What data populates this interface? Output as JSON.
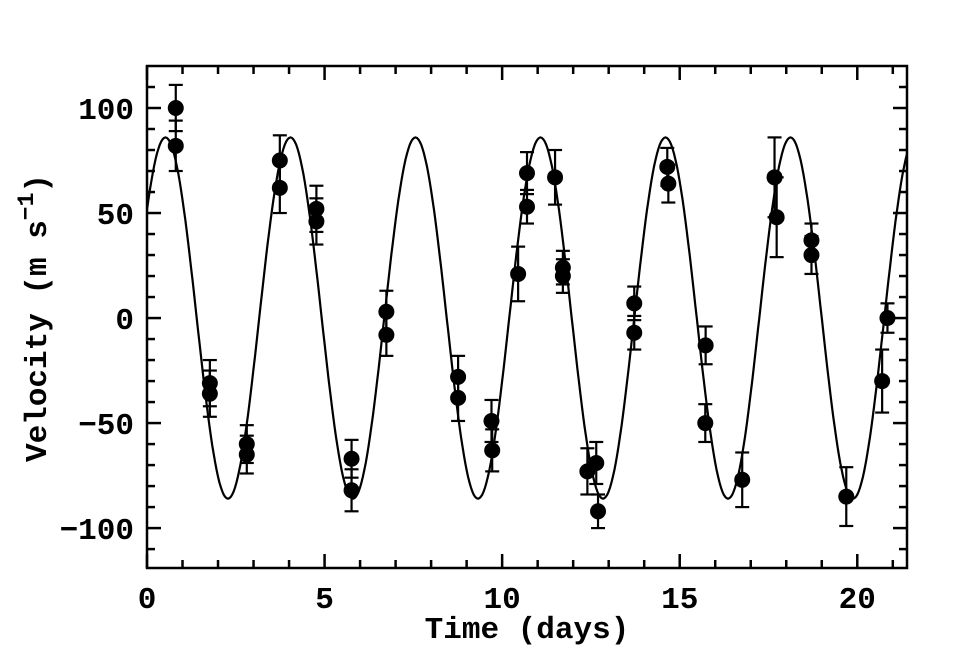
{
  "page": {
    "background_color": "#ffffff",
    "foreground_color": "#000000"
  },
  "chart_data": {
    "type": "scatter",
    "title": "",
    "xlabel": "Time (days)",
    "ylabel": "Velocity (m s-1)",
    "ylabel_parts": {
      "main": "Velocity (m s",
      "sup": "−1",
      "end": ")"
    },
    "xlim": [
      0,
      21.4
    ],
    "ylim": [
      -119,
      120
    ],
    "x_major_ticks": [
      0,
      5,
      10,
      15,
      20
    ],
    "x_minor_step": 1,
    "y_major_ticks": [
      100,
      50,
      0,
      -50,
      -100
    ],
    "y_minor_step": 10,
    "grid": false,
    "legend": "none",
    "marker_color": "#000000",
    "curve_color": "#000000",
    "fit_curve": {
      "model": "cosine",
      "amplitude_m_s": 86,
      "period_days": 3.52,
      "peak_time_days": 0.52,
      "mean_m_s": 0
    },
    "series_name": "radial velocity measurements with error bars",
    "points": [
      {
        "t": 0.81,
        "v": 100,
        "err": 11
      },
      {
        "t": 0.81,
        "v": 82,
        "err": 12
      },
      {
        "t": 1.77,
        "v": -31,
        "err": 11
      },
      {
        "t": 1.77,
        "v": -36,
        "err": 11
      },
      {
        "t": 2.81,
        "v": -60,
        "err": 9
      },
      {
        "t": 2.81,
        "v": -65,
        "err": 9
      },
      {
        "t": 3.74,
        "v": 75,
        "err": 12
      },
      {
        "t": 3.74,
        "v": 62,
        "err": 12
      },
      {
        "t": 4.77,
        "v": 52,
        "err": 11
      },
      {
        "t": 4.77,
        "v": 46,
        "err": 11
      },
      {
        "t": 5.76,
        "v": -67,
        "err": 9
      },
      {
        "t": 5.76,
        "v": -82,
        "err": 10
      },
      {
        "t": 6.74,
        "v": 3,
        "err": 10
      },
      {
        "t": 6.74,
        "v": -8,
        "err": 10
      },
      {
        "t": 8.76,
        "v": -28,
        "err": 10
      },
      {
        "t": 8.76,
        "v": -38,
        "err": 11
      },
      {
        "t": 9.7,
        "v": -49,
        "err": 10
      },
      {
        "t": 9.72,
        "v": -63,
        "err": 10
      },
      {
        "t": 10.45,
        "v": 21,
        "err": 13
      },
      {
        "t": 10.7,
        "v": 69,
        "err": 10
      },
      {
        "t": 10.7,
        "v": 53,
        "err": 8
      },
      {
        "t": 11.49,
        "v": 67,
        "err": 13
      },
      {
        "t": 11.71,
        "v": 24,
        "err": 8
      },
      {
        "t": 11.71,
        "v": 20,
        "err": 8
      },
      {
        "t": 12.4,
        "v": -73,
        "err": 11
      },
      {
        "t": 12.65,
        "v": -69,
        "err": 10
      },
      {
        "t": 12.7,
        "v": -92,
        "err": 8
      },
      {
        "t": 13.72,
        "v": 7,
        "err": 8
      },
      {
        "t": 13.72,
        "v": -7,
        "err": 8
      },
      {
        "t": 14.65,
        "v": 72,
        "err": 9
      },
      {
        "t": 14.68,
        "v": 64,
        "err": 9
      },
      {
        "t": 15.73,
        "v": -13,
        "err": 9
      },
      {
        "t": 15.72,
        "v": -50,
        "err": 9
      },
      {
        "t": 16.76,
        "v": -77,
        "err": 13
      },
      {
        "t": 17.67,
        "v": 67,
        "err": 19
      },
      {
        "t": 17.73,
        "v": 48,
        "err": 19
      },
      {
        "t": 18.71,
        "v": 37,
        "err": 8
      },
      {
        "t": 18.71,
        "v": 30,
        "err": 9
      },
      {
        "t": 19.69,
        "v": -85,
        "err": 14
      },
      {
        "t": 20.7,
        "v": -30,
        "err": 15
      },
      {
        "t": 20.85,
        "v": 0,
        "err": 7
      }
    ]
  }
}
